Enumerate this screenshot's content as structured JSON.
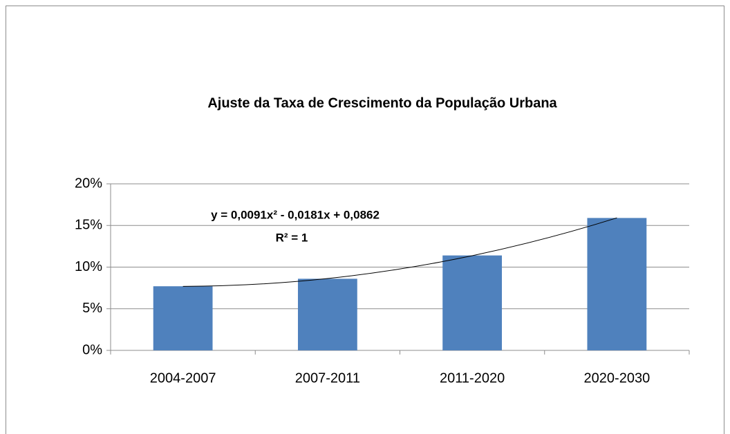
{
  "chart_data": {
    "type": "bar",
    "title": "Ajuste da Taxa de Crescimento da População Urbana",
    "categories": [
      "2004-2007",
      "2007-2011",
      "2011-2020",
      "2020-2030"
    ],
    "values": [
      7.7,
      8.6,
      11.4,
      15.9
    ],
    "color": "#4f81bd",
    "ylim": [
      0,
      20
    ],
    "yticks": [
      {
        "value": 0,
        "label": "0%"
      },
      {
        "value": 5,
        "label": "5%"
      },
      {
        "value": 10,
        "label": "10%"
      },
      {
        "value": 15,
        "label": "15%"
      },
      {
        "value": 20,
        "label": "20%"
      }
    ],
    "grid": true,
    "trendline": {
      "type": "polynomial",
      "order": 2,
      "color": "#000000"
    },
    "annotations": [
      "y = 0,0091x² - 0,0181x + 0,0862",
      "R² = 1"
    ]
  }
}
